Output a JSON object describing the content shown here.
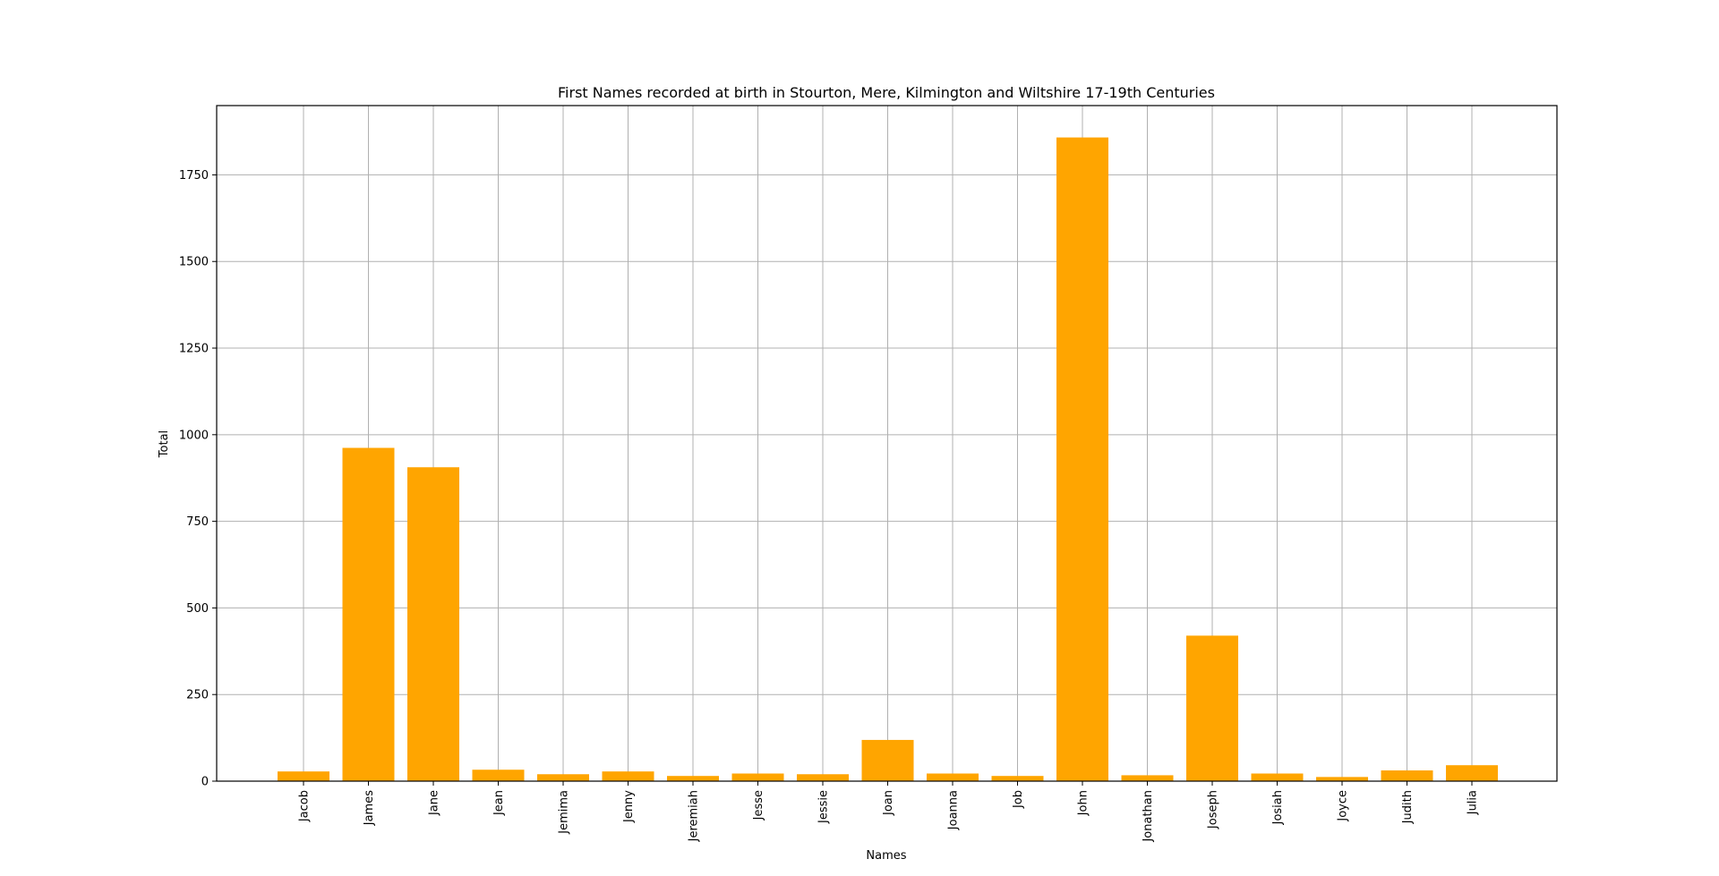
{
  "chart_data": {
    "type": "bar",
    "title": "First Names recorded at birth in Stourton, Mere, Kilmington and Wiltshire 17-19th Centuries",
    "xlabel": "Names",
    "ylabel": "Total",
    "categories": [
      "Jacob",
      "James",
      "Jane",
      "Jean",
      "Jemima",
      "Jenny",
      "Jeremiah",
      "Jesse",
      "Jessie",
      "Joan",
      "Joanna",
      "Job",
      "John",
      "Jonathan",
      "Joseph",
      "Josiah",
      "Joyce",
      "Judith",
      "Julia"
    ],
    "values": [
      28,
      962,
      906,
      33,
      20,
      28,
      15,
      22,
      20,
      119,
      22,
      15,
      1858,
      17,
      420,
      22,
      12,
      31,
      46
    ],
    "yticks": [
      0,
      250,
      500,
      750,
      1000,
      1250,
      1500,
      1750
    ],
    "ylim": [
      0,
      1950
    ],
    "grid": true,
    "bar_color": "#ffa500"
  }
}
